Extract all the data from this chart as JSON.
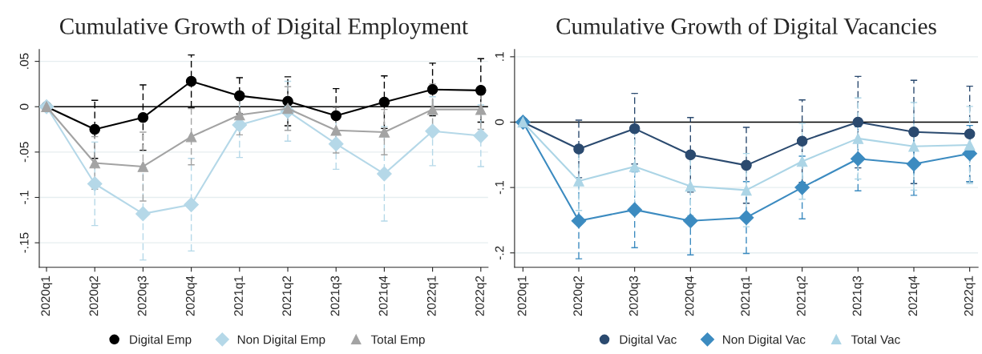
{
  "chart_data": [
    {
      "type": "line",
      "title": "Cumulative Growth of Digital Employment",
      "categories": [
        "2020q1",
        "2020q2",
        "2020q3",
        "2020q4",
        "2021q1",
        "2021q2",
        "2021q3",
        "2021q4",
        "2022q1",
        "2022q2"
      ],
      "series": [
        {
          "name": "Digital Emp",
          "color": "#000000",
          "marker": "circle",
          "values": [
            0,
            -0.025,
            -0.012,
            0.028,
            0.012,
            0.006,
            -0.01,
            0.005,
            0.019,
            0.018
          ],
          "errors": [
            null,
            0.032,
            0.036,
            0.029,
            0.02,
            0.027,
            0.03,
            0.029,
            0.029,
            0.035
          ]
        },
        {
          "name": "Non Digital Emp",
          "color": "#b5d8e8",
          "marker": "diamond",
          "values": [
            0,
            -0.085,
            -0.118,
            -0.108,
            -0.02,
            -0.005,
            -0.041,
            -0.074,
            -0.027,
            -0.032
          ],
          "errors": [
            null,
            0.046,
            0.051,
            0.051,
            0.036,
            0.033,
            0.028,
            0.052,
            0.038,
            0.034
          ]
        },
        {
          "name": "Total Emp",
          "color": "#a3a3a3",
          "marker": "triangle",
          "values": [
            0,
            -0.062,
            -0.066,
            -0.033,
            -0.009,
            -0.002,
            -0.026,
            -0.028,
            -0.003,
            -0.003
          ],
          "errors": [
            null,
            0.029,
            0.038,
            0.031,
            0.022,
            0.024,
            0.025,
            0.025,
            0.028,
            0.022
          ]
        }
      ],
      "ylim": [
        -0.177,
        0.063
      ],
      "yticks": [
        {
          "value": -0.15,
          "label": "-.15"
        },
        {
          "value": -0.1,
          "label": "-.1"
        },
        {
          "value": -0.05,
          "label": "-.05"
        },
        0,
        {
          "value": 0.05,
          "label": ".05"
        }
      ],
      "ref_lines": [
        {
          "axis": "y",
          "value": 0,
          "color": "#000000"
        }
      ],
      "grid": "y",
      "legend": "bottom",
      "line_style": "solid"
    },
    {
      "type": "line",
      "title": "Cumulative Growth of Digital Vacancies",
      "categories": [
        "2020q1",
        "2020q2",
        "2020q3",
        "2020q4",
        "2021q1",
        "2021q2",
        "2021q3",
        "2021q4",
        "2022q1"
      ],
      "series": [
        {
          "name": "Digital Vac",
          "color": "#2b4a6f",
          "marker": "circle",
          "values": [
            0,
            -0.041,
            -0.01,
            -0.05,
            -0.066,
            -0.029,
            0,
            -0.015,
            -0.018
          ],
          "errors": [
            null,
            0.044,
            0.054,
            0.057,
            0.058,
            0.063,
            0.07,
            0.079,
            0.073
          ]
        },
        {
          "name": "Non Digital Vac",
          "color": "#3c8bc0",
          "marker": "diamond",
          "values": [
            0,
            -0.151,
            -0.134,
            -0.151,
            -0.146,
            -0.1,
            -0.056,
            -0.064,
            -0.048
          ],
          "errors": [
            null,
            0.058,
            0.058,
            0.052,
            0.055,
            0.048,
            0.049,
            0.048,
            0.043
          ]
        },
        {
          "name": "Total Vac",
          "color": "#acd5e6",
          "marker": "triangle",
          "values": [
            0,
            -0.09,
            -0.068,
            -0.098,
            -0.104,
            -0.06,
            -0.025,
            -0.037,
            -0.035
          ],
          "errors": [
            null,
            0.045,
            0.06,
            0.045,
            0.056,
            0.058,
            0.062,
            0.067,
            0.059
          ]
        }
      ],
      "ylim": [
        -0.222,
        0.111
      ],
      "yticks": [
        {
          "value": -0.2,
          "label": "-.2"
        },
        {
          "value": -0.1,
          "label": "-.1"
        },
        0,
        {
          "value": 0.1,
          "label": ".1"
        }
      ],
      "ref_lines": [
        {
          "axis": "y",
          "value": 0,
          "color": "#000000"
        }
      ],
      "grid": "y",
      "legend": "bottom",
      "line_style": "solid"
    }
  ]
}
